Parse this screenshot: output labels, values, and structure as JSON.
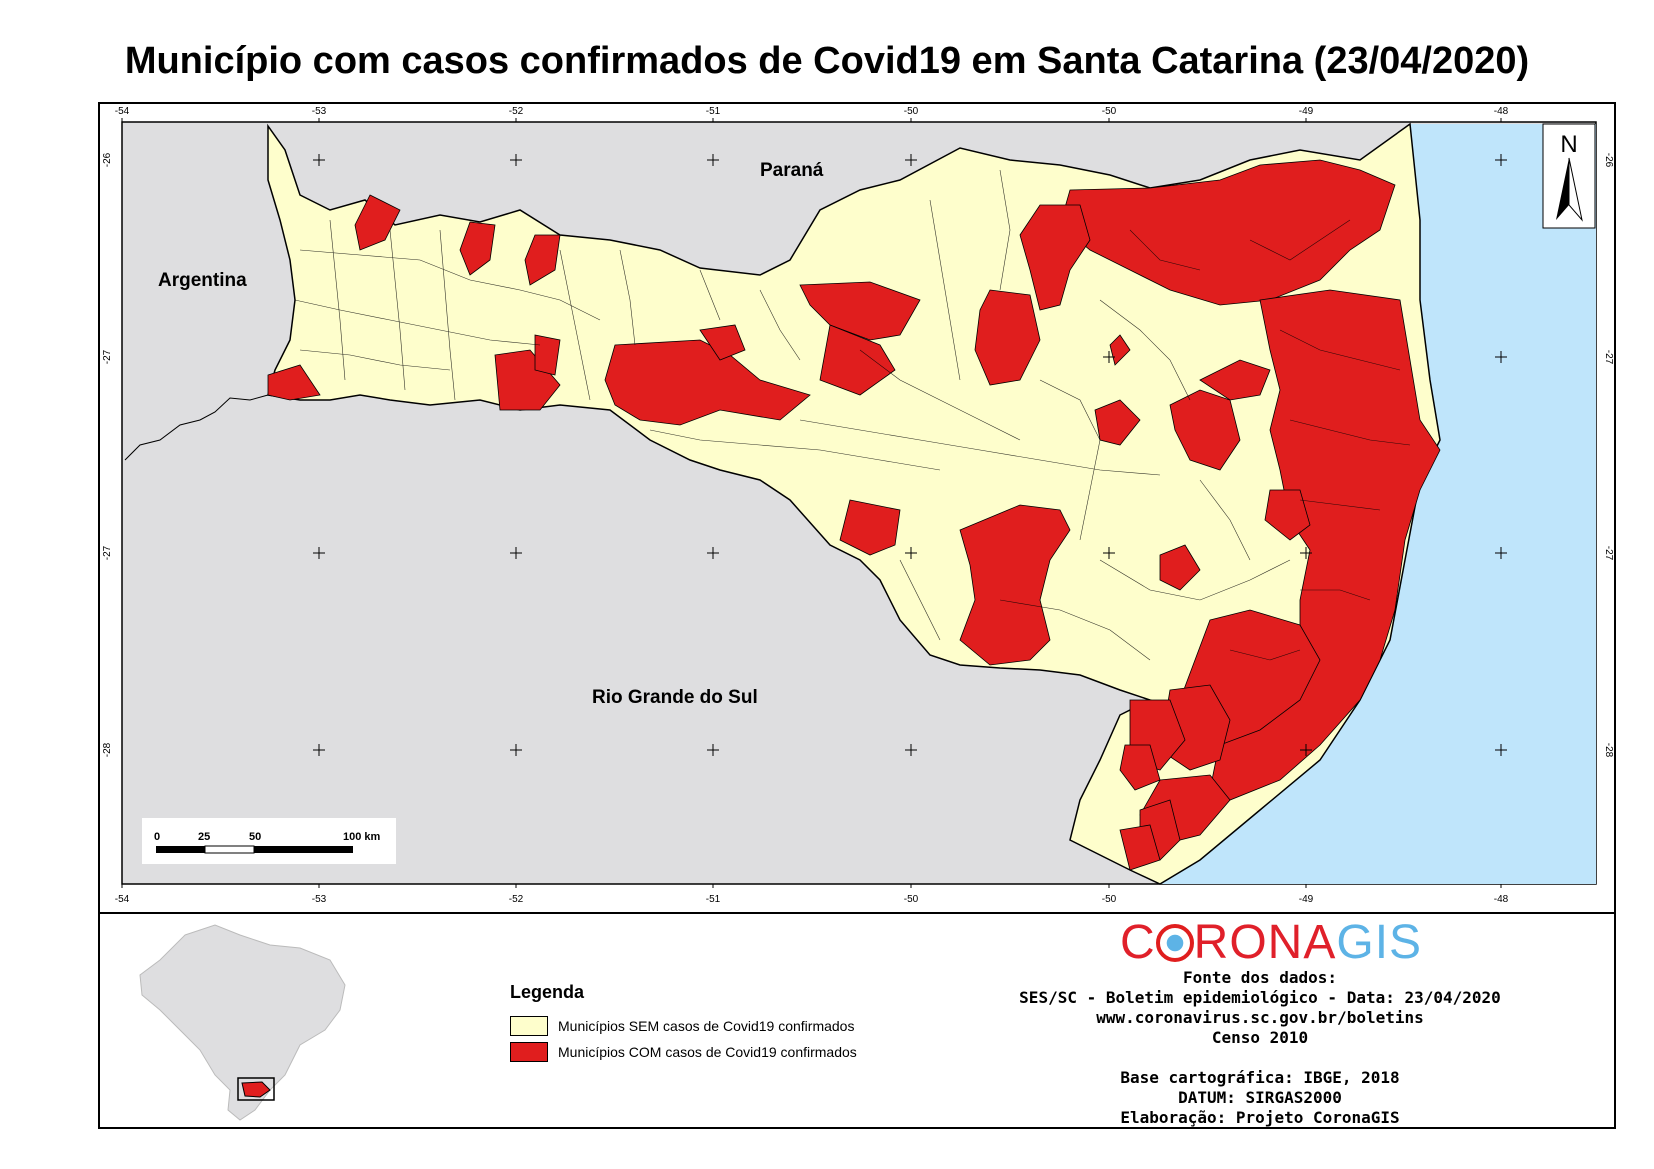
{
  "title": "Município com casos confirmados de Covid19 em Santa Catarina (23/04/2020)",
  "map": {
    "colors": {
      "neighbor": "#dedee0",
      "ocean": "#bfe5fb",
      "without_cases": "#fefecc",
      "with_cases": "#e01e1e",
      "border": "#000000"
    },
    "longitude_labels": [
      "-54",
      "-53",
      "-52",
      "-51",
      "-50",
      "-50",
      "-49",
      "-48"
    ],
    "latitude_labels": [
      "-26",
      "-27",
      "-27",
      "-28"
    ],
    "places": {
      "parana": "Paraná",
      "argentina": "Argentina",
      "rio_grande_do_sul": "Rio Grande do Sul"
    },
    "north_arrow": "N",
    "scale_bar": {
      "labels": [
        "0",
        "25",
        "50",
        "100 km"
      ]
    }
  },
  "legend": {
    "title": "Legenda",
    "items": [
      {
        "label": "Municípios SEM casos de Covid19 confirmados",
        "color": "#fefecc"
      },
      {
        "label": "Municípios COM casos de Covid19 confirmados",
        "color": "#e01e1e"
      }
    ]
  },
  "brand": {
    "part1": "C",
    "part2": "RONA",
    "part3": "GIS"
  },
  "source": {
    "line1": "Fonte dos dados:",
    "line2": "SES/SC - Boletim epidemiológico - Data: 23/04/2020",
    "line3": "www.coronavirus.sc.gov.br/boletins",
    "line4": "Censo 2010",
    "line5": "Base cartográfica: IBGE, 2018",
    "line6": "DATUM: SIRGAS2000",
    "line7": "Elaboração: Projeto CoronaGIS"
  }
}
